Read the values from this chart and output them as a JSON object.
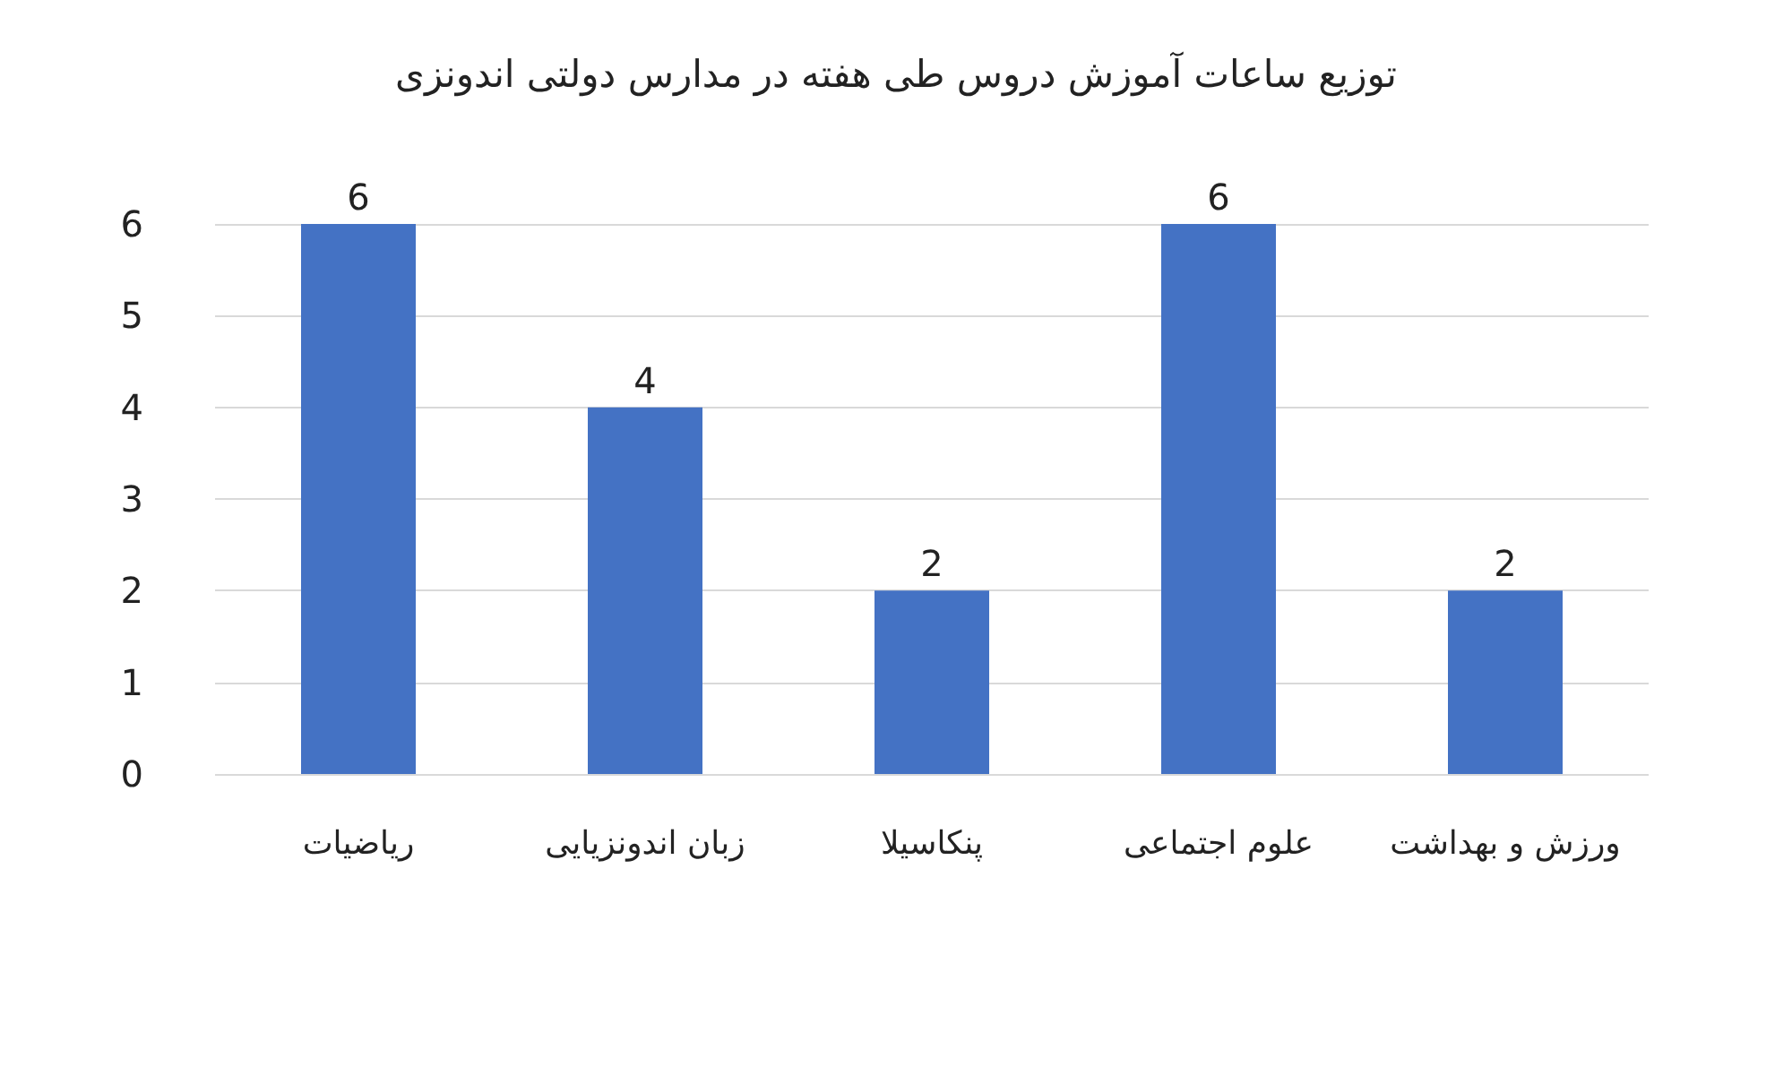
{
  "chart_data": {
    "type": "bar",
    "title": "توزیع ساعات آموزش دروس طی هفته در مدارس دولتی اندونزی",
    "categories": [
      "ریاضیات",
      "زبان اندونزیایی",
      "پنکاسیلا",
      "علوم اجتماعی",
      "ورزش و بهداشت"
    ],
    "values": [
      6,
      4,
      2,
      6,
      2
    ],
    "color": "#4472c4",
    "ylim": [
      0,
      6
    ],
    "yticks": [
      0,
      1,
      2,
      3,
      4,
      5,
      6
    ],
    "grid": "y",
    "data_labels": true
  }
}
